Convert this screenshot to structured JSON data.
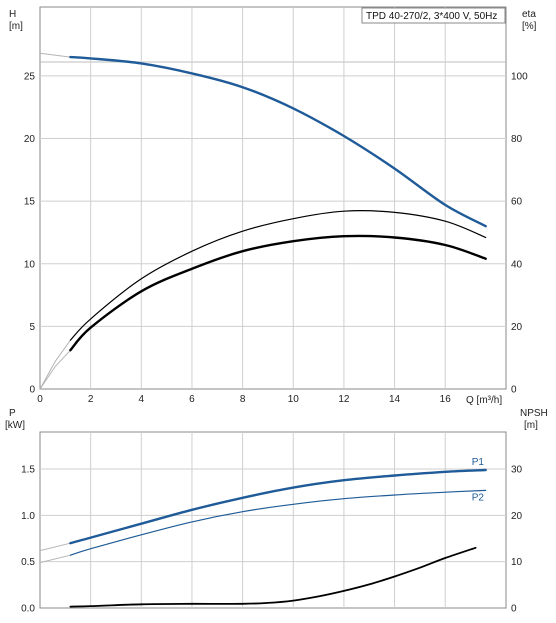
{
  "colors": {
    "blue": "#1f5b98",
    "black": "#000000",
    "grid": "#cfcfcf",
    "frame": "#888888"
  },
  "chart_data": [
    {
      "type": "line",
      "title": "TPD 40-270/2, 3*400 V, 50Hz",
      "xlabel": "Q [m³/h]",
      "ylabel_left_name": "H",
      "ylabel_left_unit": "[m]",
      "ylabel_right_name": "eta",
      "ylabel_right_unit": "[%]",
      "xlim": [
        0,
        18.4
      ],
      "ylim_left": [
        0,
        30.5
      ],
      "ylim_right": [
        0,
        122
      ],
      "x_ticks": [
        "0",
        "2",
        "4",
        "6",
        "8",
        "10",
        "12",
        "14",
        "16"
      ],
      "y_ticks_left": [
        "0",
        "5",
        "10",
        "15",
        "20",
        "25"
      ],
      "y_ticks_right": [
        "0",
        "20",
        "40",
        "60",
        "80",
        "100"
      ],
      "grid": true,
      "series": [
        {
          "color": "blue",
          "axis": "left",
          "stroke": 2.4,
          "x": [
            1.2,
            2,
            4,
            6,
            8,
            10,
            12,
            14,
            16,
            17.6
          ],
          "values": [
            26.5,
            26.4,
            26.0,
            25.2,
            24.1,
            22.4,
            20.2,
            17.6,
            14.7,
            13.0
          ],
          "extrap_x": [
            0,
            1.2
          ],
          "extrap_values": [
            26.8,
            26.5
          ]
        },
        {
          "color": "black",
          "axis": "left",
          "stroke": 1.2,
          "x": [
            1.2,
            2,
            4,
            6,
            8,
            10,
            12,
            14,
            16,
            17.6
          ],
          "values": [
            3.9,
            5.6,
            8.8,
            11.0,
            12.6,
            13.6,
            14.2,
            14.1,
            13.4,
            12.1
          ],
          "extrap_x": [
            0,
            0.6,
            1.2
          ],
          "extrap_values": [
            0,
            2.2,
            3.9
          ]
        },
        {
          "color": "black",
          "axis": "left",
          "stroke": 2.4,
          "x": [
            1.2,
            2,
            4,
            6,
            8,
            10,
            12,
            14,
            16,
            17.6
          ],
          "values": [
            3.1,
            4.9,
            7.8,
            9.6,
            11.0,
            11.8,
            12.2,
            12.1,
            11.5,
            10.4
          ],
          "extrap_x": [
            0,
            0.6,
            1.2
          ],
          "extrap_values": [
            0,
            1.8,
            3.1
          ]
        }
      ]
    },
    {
      "type": "line",
      "xlabel": "",
      "ylabel_left_name": "P",
      "ylabel_left_unit": "[kW]",
      "ylabel_right_name": "NPSH",
      "ylabel_right_unit": "[m]",
      "xlim": [
        0,
        18.4
      ],
      "ylim_left": [
        0,
        1.9
      ],
      "ylim_right": [
        0,
        38
      ],
      "y_ticks_left": [
        "0.0",
        "0.5",
        "1.0",
        "1.5"
      ],
      "y_ticks_right": [
        "0",
        "10",
        "20",
        "30"
      ],
      "grid": true,
      "series": [
        {
          "name": "P1",
          "color": "blue",
          "axis": "left",
          "stroke": 2.4,
          "x": [
            1.2,
            2,
            4,
            6,
            8,
            10,
            12,
            14,
            16,
            17.6
          ],
          "values": [
            0.7,
            0.76,
            0.91,
            1.06,
            1.19,
            1.3,
            1.38,
            1.43,
            1.47,
            1.49
          ],
          "extrap_x": [
            0,
            1.2
          ],
          "extrap_values": [
            0.62,
            0.7
          ]
        },
        {
          "name": "P2",
          "color": "blue",
          "axis": "left",
          "stroke": 1.2,
          "x": [
            1.2,
            2,
            4,
            6,
            8,
            10,
            12,
            14,
            16,
            17.6
          ],
          "values": [
            0.57,
            0.64,
            0.79,
            0.93,
            1.04,
            1.12,
            1.18,
            1.22,
            1.25,
            1.27
          ],
          "extrap_x": [
            0,
            1.2
          ],
          "extrap_values": [
            0.49,
            0.57
          ]
        },
        {
          "color": "black",
          "axis": "right",
          "stroke": 1.8,
          "x": [
            1.2,
            2,
            4,
            6,
            8,
            9,
            10,
            11,
            12,
            13,
            14,
            15,
            16,
            17.2
          ],
          "values": [
            0.3,
            0.4,
            0.8,
            0.9,
            0.9,
            1.1,
            1.6,
            2.5,
            3.7,
            5.1,
            6.8,
            8.7,
            10.8,
            13.0
          ]
        }
      ]
    }
  ]
}
